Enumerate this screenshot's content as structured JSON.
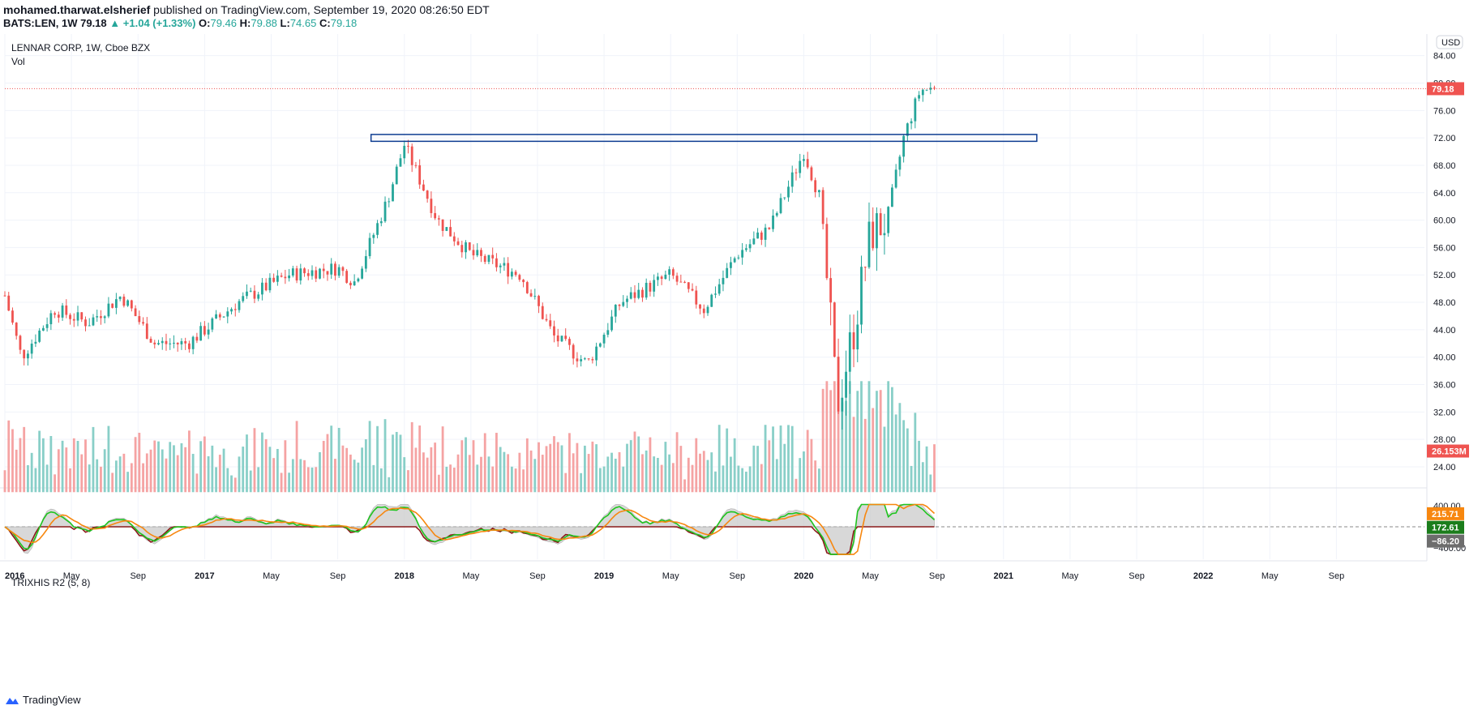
{
  "header": {
    "author": "mohamed.tharwat.elsherief",
    "published_text": "published on TradingView.com, September 19, 2020 08:26:50 EDT",
    "symbol": "BATS:LEN, 1W",
    "last": "79.18",
    "change": "+1.04 (+1.33%)",
    "open_label": "O:",
    "open": "79.46",
    "high_label": "H:",
    "high": "79.88",
    "low_label": "L:",
    "low": "74.65",
    "close_label": "C:",
    "close": "79.18"
  },
  "main_pane": {
    "title": "LENNAR CORP, 1W, Cboe BZX",
    "vol_label": "Vol",
    "currency": "USD",
    "price_badge": "79.18",
    "volume_badge": "26.153M"
  },
  "indicator_pane": {
    "title": "TRIXHIS R2 (5, 8)",
    "badges": [
      "215.71",
      "172.61",
      "−86.20"
    ]
  },
  "footer": {
    "brand": "TradingView"
  },
  "colors": {
    "up": "#26a69a",
    "down": "#ef5350",
    "up_vol": "#89cfc8",
    "down_vol": "#f5a3a3",
    "box": "#0d3c91",
    "trix_green": "#1fc41f",
    "trix_orange": "#f7870f",
    "trix_red": "#8b1a1a",
    "hist": "#c8c8c8"
  },
  "chart_data": [
    {
      "type": "candlestick",
      "title": "LENNAR CORP, 1W, Cboe BZX",
      "y_axis_ticks": [
        24,
        28,
        32,
        36,
        40,
        44,
        48,
        52,
        56,
        60,
        64,
        68,
        72,
        76,
        80,
        84
      ],
      "ylim": [
        20,
        85
      ],
      "x_ticks": [
        "2016",
        "May",
        "Sep",
        "2017",
        "May",
        "Sep",
        "2018",
        "May",
        "Sep",
        "2019",
        "May",
        "Sep",
        "2020",
        "May",
        "Sep",
        "2021",
        "May",
        "Sep",
        "2022",
        "May",
        "Sep"
      ],
      "anchors": [
        {
          "date": "2016-01",
          "close": 49
        },
        {
          "date": "2016-02",
          "close": 40
        },
        {
          "date": "2016-04",
          "close": 47
        },
        {
          "date": "2016-06",
          "close": 45
        },
        {
          "date": "2016-08",
          "close": 49
        },
        {
          "date": "2016-10",
          "close": 42
        },
        {
          "date": "2016-12",
          "close": 42
        },
        {
          "date": "2017-03",
          "close": 48
        },
        {
          "date": "2017-06",
          "close": 52
        },
        {
          "date": "2017-09",
          "close": 53
        },
        {
          "date": "2017-10",
          "close": 51
        },
        {
          "date": "2017-12",
          "close": 63
        },
        {
          "date": "2018-01",
          "close": 71
        },
        {
          "date": "2018-03",
          "close": 60
        },
        {
          "date": "2018-05",
          "close": 55
        },
        {
          "date": "2018-08",
          "close": 52
        },
        {
          "date": "2018-10",
          "close": 43
        },
        {
          "date": "2018-12",
          "close": 39
        },
        {
          "date": "2019-02",
          "close": 48
        },
        {
          "date": "2019-05",
          "close": 52
        },
        {
          "date": "2019-07",
          "close": 47
        },
        {
          "date": "2019-09",
          "close": 55
        },
        {
          "date": "2019-11",
          "close": 59
        },
        {
          "date": "2020-01",
          "close": 70
        },
        {
          "date": "2020-02",
          "close": 63
        },
        {
          "date": "2020-03",
          "close": 33
        },
        {
          "date": "2020-04",
          "close": 44
        },
        {
          "date": "2020-05",
          "close": 58
        },
        {
          "date": "2020-06",
          "close": 60
        },
        {
          "date": "2020-07",
          "close": 72
        },
        {
          "date": "2020-08",
          "close": 79
        },
        {
          "date": "2020-09",
          "close": 79.18
        }
      ],
      "horizontal_level": 79.18,
      "resistance_zone": {
        "from": 71.5,
        "to": 72.5,
        "start": "2017-11",
        "end": "2021-03"
      }
    },
    {
      "type": "bar",
      "name": "Vol",
      "last_value": "26.153M"
    },
    {
      "type": "line",
      "title": "TRIXHIS R2 (5, 8)",
      "y_axis_ticks": [
        400,
        -400
      ],
      "ylim": [
        -550,
        450
      ],
      "zero_line": 0,
      "last_values": {
        "orange": 215.71,
        "green": 172.61,
        "gray": -86.2
      }
    }
  ]
}
